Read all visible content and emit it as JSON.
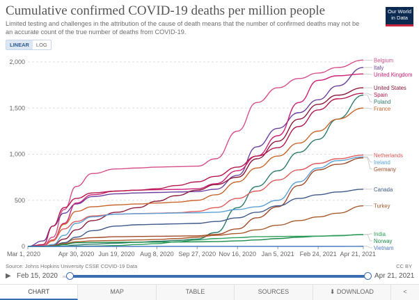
{
  "header": {
    "title": "Cumulative confirmed COVID-19 deaths per million people",
    "subtitle": "Limited testing and challenges in the attribution of the cause of death means that the number of confirmed deaths may not be an accurate count of the true number of deaths from COVID-19.",
    "logo_text": "Our World in Data"
  },
  "scale_toggle": {
    "linear": "LINEAR",
    "log": "LOG"
  },
  "footer": {
    "source": "Source: Johns Hopkins University CSSE COVID-19 Data",
    "license": "CC BY"
  },
  "timeline": {
    "start": "Feb 15, 2020",
    "end": "Apr 21, 2021",
    "play_icon": "play-icon"
  },
  "tabs": {
    "chart": "CHART",
    "map": "MAP",
    "table": "TABLE",
    "sources": "SOURCES",
    "download": "DOWNLOAD",
    "share_icon": "share-icon",
    "download_icon": "download-icon"
  },
  "chart_data": {
    "type": "line",
    "title": "Cumulative confirmed COVID-19 deaths per million people",
    "xlabel": "",
    "ylabel": "",
    "ylim": [
      0,
      2000
    ],
    "yticks": [
      "0",
      "500",
      "1,000",
      "1,500",
      "2,000"
    ],
    "xticks": [
      "Mar 1, 2020",
      "Apr 30, 2020",
      "Jun 19, 2020",
      "Aug 8, 2020",
      "Sep 27, 2020",
      "Nov 16, 2020",
      "Jan 5, 2021",
      "Feb 24, 2021",
      "Apr 21, 2021"
    ],
    "x": [
      "2020-03-01",
      "2020-03-20",
      "2020-04-01",
      "2020-04-15",
      "2020-04-30",
      "2020-05-20",
      "2020-06-19",
      "2020-07-15",
      "2020-08-08",
      "2020-09-01",
      "2020-09-27",
      "2020-10-20",
      "2020-11-16",
      "2020-12-10",
      "2021-01-05",
      "2021-01-31",
      "2021-02-24",
      "2021-03-20",
      "2021-04-21"
    ],
    "series": [
      {
        "name": "Belgium",
        "color": "#d64f8a",
        "values": [
          0,
          10,
          100,
          400,
          650,
          790,
          840,
          850,
          860,
          865,
          870,
          950,
          1250,
          1560,
          1720,
          1820,
          1880,
          1940,
          2020
        ]
      },
      {
        "name": "Italy",
        "color": "#6b3fa0",
        "values": [
          0,
          60,
          220,
          360,
          460,
          540,
          570,
          580,
          585,
          590,
          595,
          620,
          770,
          1080,
          1280,
          1450,
          1590,
          1740,
          1940
        ]
      },
      {
        "name": "United Kingdom",
        "color": "#cf1e76",
        "values": [
          0,
          3,
          70,
          250,
          470,
          560,
          600,
          610,
          615,
          618,
          625,
          680,
          820,
          980,
          1200,
          1560,
          1800,
          1850,
          1870
        ]
      },
      {
        "name": "United States",
        "color": "#8b1a3a",
        "values": [
          0,
          1,
          15,
          80,
          180,
          280,
          370,
          420,
          490,
          550,
          610,
          670,
          750,
          950,
          1140,
          1380,
          1540,
          1640,
          1720
        ]
      },
      {
        "name": "Poland",
        "color": "#2b7b6a",
        "values": [
          0,
          0,
          2,
          5,
          15,
          25,
          35,
          45,
          55,
          65,
          80,
          150,
          420,
          650,
          820,
          1020,
          1160,
          1380,
          1640
        ]
      },
      {
        "name": "Spain",
        "color": "#b5164b",
        "values": [
          0,
          20,
          220,
          420,
          520,
          580,
          600,
          610,
          625,
          660,
          700,
          760,
          860,
          980,
          1070,
          1300,
          1480,
          1600,
          1660
        ]
      },
      {
        "name": "France",
        "color": "#c9652b",
        "values": [
          0,
          5,
          60,
          240,
          380,
          430,
          450,
          460,
          470,
          480,
          500,
          560,
          700,
          850,
          980,
          1120,
          1250,
          1380,
          1500
        ]
      },
      {
        "name": "Netherlands",
        "color": "#e05a5a",
        "values": [
          0,
          5,
          70,
          190,
          270,
          330,
          350,
          355,
          360,
          365,
          380,
          420,
          520,
          600,
          720,
          830,
          900,
          950,
          990
        ]
      },
      {
        "name": "Ireland",
        "color": "#5aa0d8",
        "values": [
          0,
          2,
          20,
          120,
          250,
          320,
          350,
          355,
          358,
          362,
          365,
          370,
          400,
          430,
          500,
          700,
          850,
          930,
          970
        ]
      },
      {
        "name": "Germany",
        "color": "#a24a28",
        "values": [
          0,
          0,
          10,
          40,
          80,
          95,
          105,
          108,
          110,
          112,
          115,
          130,
          190,
          310,
          430,
          660,
          830,
          890,
          960
        ]
      },
      {
        "name": "Canada",
        "color": "#3e5a8a",
        "values": [
          0,
          0,
          5,
          40,
          100,
          170,
          220,
          235,
          240,
          245,
          250,
          270,
          310,
          370,
          440,
          520,
          560,
          590,
          620
        ]
      },
      {
        "name": "Turkey",
        "color": "#a85a2a",
        "values": [
          0,
          0,
          5,
          30,
          50,
          60,
          65,
          70,
          75,
          85,
          100,
          120,
          140,
          180,
          230,
          280,
          320,
          360,
          440
        ]
      },
      {
        "name": "Norway",
        "color": "#1d8c4a",
        "values": [
          0,
          0,
          3,
          20,
          40,
          43,
          45,
          46,
          47,
          48,
          50,
          52,
          60,
          70,
          85,
          100,
          110,
          118,
          128
        ]
      },
      {
        "name": "India",
        "color": "#2ca05a",
        "values": [
          0,
          0,
          0,
          1,
          2,
          4,
          10,
          20,
          30,
          50,
          70,
          85,
          95,
          105,
          108,
          110,
          112,
          115,
          130
        ]
      },
      {
        "name": "Vietnam",
        "color": "#4a78c2",
        "values": [
          0,
          0,
          0,
          0,
          0,
          0,
          0,
          0,
          0,
          0,
          0,
          0,
          0,
          0,
          0,
          0,
          0,
          0,
          1
        ]
      }
    ]
  }
}
